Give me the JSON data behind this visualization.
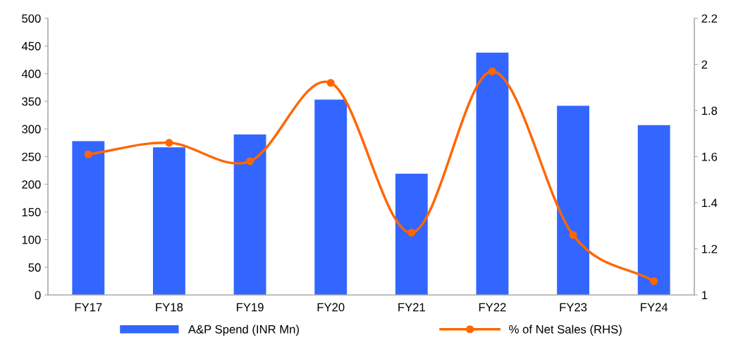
{
  "chart_data": {
    "type": "bar",
    "categories": [
      "FY17",
      "FY18",
      "FY19",
      "FY20",
      "FY21",
      "FY22",
      "FY23",
      "FY24"
    ],
    "series": [
      {
        "name": "A&P Spend (INR Mn)",
        "color": "#3366ff",
        "values": [
          278,
          267,
          290,
          353,
          219,
          438,
          342,
          307
        ]
      },
      {
        "name": "% of Net Sales (RHS)",
        "color": "#ff6600",
        "type": "line",
        "axis": "y2",
        "marker": "circle",
        "values": [
          1.61,
          1.66,
          1.58,
          1.92,
          1.27,
          1.97,
          1.26,
          1.06
        ]
      }
    ],
    "ylim": [
      0,
      500
    ],
    "yticks": [
      0,
      50,
      100,
      150,
      200,
      250,
      300,
      350,
      400,
      450,
      500
    ],
    "y2lim": [
      1,
      2.2
    ],
    "y2ticks": [
      1,
      1.2,
      1.4,
      1.6,
      1.8,
      2,
      2.2
    ],
    "grid": false,
    "legend": "bottom"
  }
}
